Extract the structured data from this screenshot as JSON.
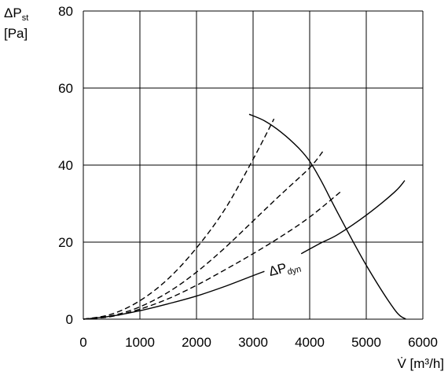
{
  "chart_data": {
    "type": "line",
    "x_unit_label": {
      "main": "V̇",
      "rest": " [m³/h]"
    },
    "y_unit_label": {
      "line1_main": "ΔP",
      "line1_sub": "st",
      "line2": "[Pa]"
    },
    "x_ticks": [
      "0",
      "1000",
      "2000",
      "3000",
      "4000",
      "5000",
      "6000"
    ],
    "y_ticks": [
      "0",
      "20",
      "40",
      "60",
      "80"
    ],
    "xlim": [
      0,
      6000
    ],
    "ylim": [
      0,
      80
    ],
    "grid": true,
    "series": [
      {
        "style": "solid",
        "points": [
          [
            2930,
            53.2
          ],
          [
            3200,
            51.5
          ],
          [
            3500,
            48.5
          ],
          [
            3800,
            44.5
          ],
          [
            4000,
            41
          ],
          [
            4200,
            36
          ],
          [
            4500,
            27.5
          ],
          [
            5000,
            14
          ],
          [
            5500,
            2.5
          ],
          [
            5700,
            0
          ]
        ]
      },
      {
        "style": "solid",
        "points": [
          [
            0,
            0
          ],
          [
            500,
            0.8
          ],
          [
            1000,
            2.2
          ],
          [
            1500,
            4
          ],
          [
            2000,
            6
          ],
          [
            2500,
            8.5
          ],
          [
            3000,
            11.3
          ],
          [
            3200,
            12.4
          ]
        ]
      },
      {
        "style": "solid",
        "points": [
          [
            3850,
            17
          ],
          [
            4200,
            19.8
          ],
          [
            4500,
            22
          ],
          [
            5000,
            27
          ],
          [
            5500,
            33
          ],
          [
            5680,
            36
          ]
        ]
      },
      {
        "style": "dashed",
        "points": [
          [
            0,
            0
          ],
          [
            500,
            1.3
          ],
          [
            1000,
            4.8
          ],
          [
            1500,
            10.5
          ],
          [
            2000,
            18.5
          ],
          [
            2500,
            28.5
          ],
          [
            3000,
            41.5
          ],
          [
            3370,
            52
          ]
        ]
      },
      {
        "style": "dashed",
        "points": [
          [
            0,
            0
          ],
          [
            500,
            0.9
          ],
          [
            1000,
            3.2
          ],
          [
            1500,
            7
          ],
          [
            2000,
            12.2
          ],
          [
            2500,
            18.5
          ],
          [
            3000,
            25.5
          ],
          [
            3500,
            32.5
          ],
          [
            4000,
            39.3
          ],
          [
            4230,
            43.5
          ]
        ]
      },
      {
        "style": "dashed",
        "points": [
          [
            0,
            0
          ],
          [
            500,
            0.7
          ],
          [
            1000,
            2.6
          ],
          [
            1500,
            5.3
          ],
          [
            2000,
            8.8
          ],
          [
            2500,
            12.8
          ],
          [
            3000,
            17
          ],
          [
            3500,
            21.5
          ],
          [
            4000,
            26.5
          ],
          [
            4540,
            33
          ]
        ]
      }
    ],
    "annotations": [
      {
        "main": "ΔP",
        "sub": "dyn",
        "at": [
          3300,
          11.2
        ],
        "rotate": -14
      }
    ]
  }
}
